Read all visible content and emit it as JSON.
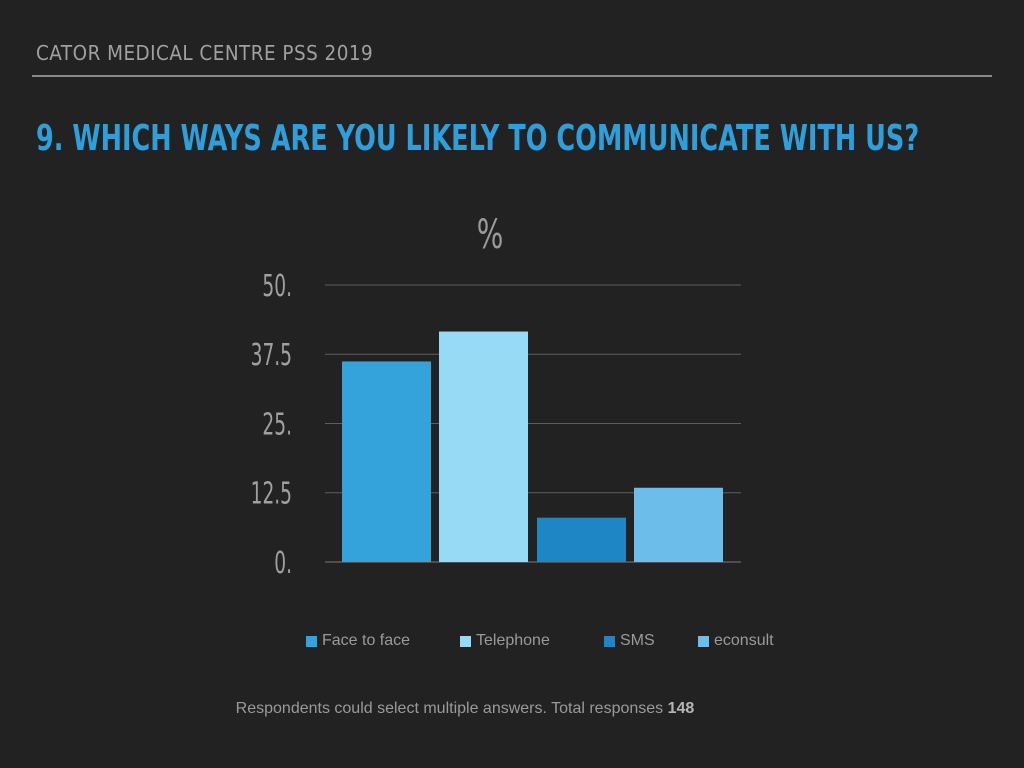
{
  "header": {
    "title": "CATOR MEDICAL CENTRE PSS 2019"
  },
  "question": {
    "text": "9. WHICH WAYS ARE YOU LIKELY TO COMMUNICATE WITH US?"
  },
  "chart_data": {
    "type": "bar",
    "title": "%",
    "xlabel": "",
    "ylabel": "",
    "categories": [
      "Face to face",
      "Telephone",
      "SMS",
      "econsult"
    ],
    "values": [
      36.2,
      41.6,
      8.0,
      13.4
    ],
    "colors": [
      "#34a3db",
      "#97daf6",
      "#1f86c6",
      "#6cbde9"
    ],
    "ylim": [
      0,
      50
    ],
    "yticks": [
      0,
      12.5,
      25,
      37.5,
      50
    ],
    "ytick_labels": [
      "0.",
      "12.5",
      "25.",
      "37.5",
      "50."
    ],
    "grid": true,
    "legend_position": "bottom"
  },
  "footnote": {
    "text": "Respondents could select multiple answers. Total responses",
    "total": "148"
  }
}
